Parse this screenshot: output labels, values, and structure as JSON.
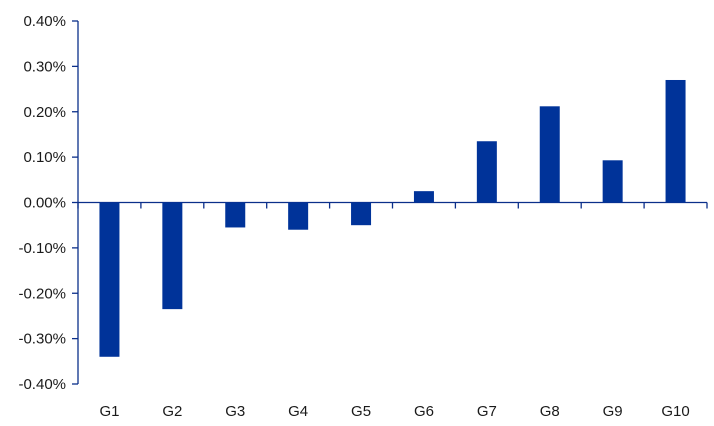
{
  "chart_data": {
    "type": "bar",
    "categories": [
      "G1",
      "G2",
      "G3",
      "G4",
      "G5",
      "G6",
      "G7",
      "G8",
      "G9",
      "G10"
    ],
    "values": [
      -0.34,
      -0.235,
      -0.055,
      -0.06,
      -0.05,
      0.025,
      0.135,
      0.212,
      0.093,
      0.27
    ],
    "ylim": [
      -0.4,
      0.4
    ],
    "yticks": [
      0.4,
      0.3,
      0.2,
      0.1,
      0.0,
      -0.1,
      -0.2,
      -0.3,
      -0.4
    ],
    "ytick_labels": [
      "0.40%",
      "0.30%",
      "0.20%",
      "0.10%",
      "0.00%",
      "-0.10%",
      "-0.20%",
      "-0.30%",
      "-0.40%"
    ],
    "title": "",
    "xlabel": "",
    "ylabel": "",
    "grid": false,
    "legend": "none",
    "bar_color": "#003399",
    "axis_color": "#0b2f8a"
  }
}
